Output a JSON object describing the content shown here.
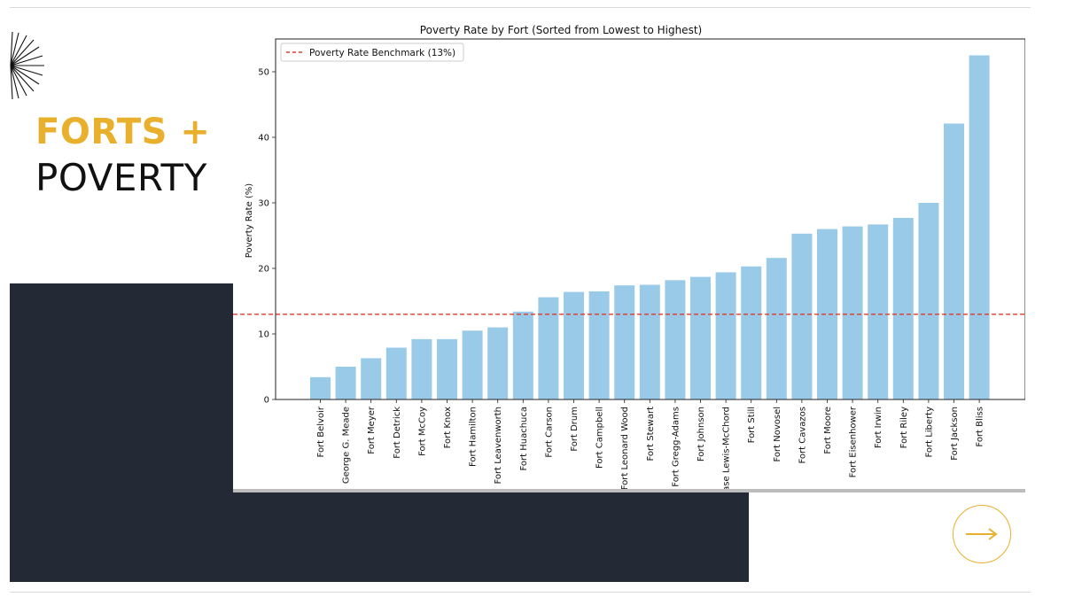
{
  "slide": {
    "title_part1": "FORTS +",
    "title_part2": "POVERTY",
    "accent_color": "#e8b02c",
    "dark_color": "#232a35",
    "next_icon": "arrow-right-icon"
  },
  "chart_data": {
    "type": "bar",
    "title": "Poverty Rate by Fort (Sorted from Lowest to Highest)",
    "xlabel": "",
    "ylabel": "Poverty Rate (%)",
    "ylim": [
      0,
      55
    ],
    "yticks": [
      0,
      10,
      20,
      30,
      40,
      50
    ],
    "bar_color": "#99cbe9",
    "categories": [
      "Fort Belvoir",
      "George G. Meade",
      "Fort Meyer",
      "Fort Detrick",
      "Fort McCoy",
      "Fort Knox",
      "Fort Hamilton",
      "Fort Leavenworth",
      "Fort Huachuca",
      "Fort Carson",
      "Fort Drum",
      "Fort Campbell",
      "Fort Leonard Wood",
      "Fort Stewart",
      "Fort Gregg-Adams",
      "Fort Johnson",
      "Joint Base Lewis-McChord",
      "Fort Still",
      "Fort Novosel",
      "Fort Cavazos",
      "Fort Moore",
      "Fort Eisenhower",
      "Fort Irwin",
      "Fort Riley",
      "Fort Liberty",
      "Fort Jackson",
      "Fort Bliss"
    ],
    "values": [
      3.4,
      5.0,
      6.3,
      7.9,
      9.2,
      9.2,
      10.5,
      11.0,
      13.4,
      15.6,
      16.4,
      16.5,
      17.4,
      17.5,
      18.2,
      18.7,
      19.4,
      20.3,
      21.6,
      25.3,
      26.0,
      26.4,
      26.7,
      27.7,
      30.0,
      42.1,
      52.5
    ],
    "benchmark": {
      "value": 13,
      "label": "Poverty Rate Benchmark (13%)",
      "color": "#e03a2a",
      "style": "dashed"
    },
    "legend_position": "top-left",
    "grid": false
  }
}
